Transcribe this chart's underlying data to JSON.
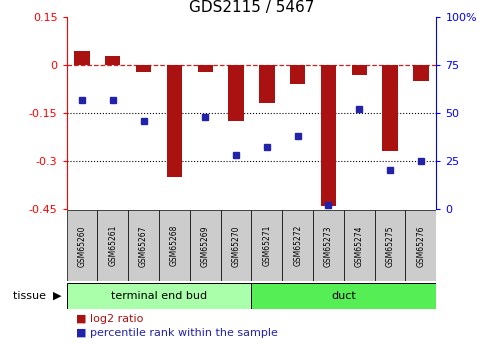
{
  "title": "GDS2115 / 5467",
  "samples": [
    "GSM65260",
    "GSM65261",
    "GSM65267",
    "GSM65268",
    "GSM65269",
    "GSM65270",
    "GSM65271",
    "GSM65272",
    "GSM65273",
    "GSM65274",
    "GSM65275",
    "GSM65276"
  ],
  "log2_ratio": [
    0.045,
    0.03,
    -0.02,
    -0.35,
    -0.02,
    -0.175,
    -0.12,
    -0.06,
    -0.44,
    -0.03,
    -0.27,
    -0.05
  ],
  "percentile_rank": [
    57,
    57,
    46,
    null,
    48,
    28,
    32,
    38,
    2,
    52,
    20,
    25
  ],
  "ylim_left": [
    -0.45,
    0.15
  ],
  "ylim_right": [
    0,
    100
  ],
  "yticks_left": [
    0.15,
    0,
    -0.15,
    -0.3,
    -0.45
  ],
  "yticks_right": [
    100,
    75,
    50,
    25,
    0
  ],
  "hlines": [
    -0.15,
    -0.3
  ],
  "bar_color": "#aa1111",
  "dot_color": "#2222aa",
  "dashed_line_color": "#cc2222",
  "tissue_groups": [
    {
      "label": "terminal end bud",
      "start": 0,
      "end": 6,
      "color": "#aaffaa"
    },
    {
      "label": "duct",
      "start": 6,
      "end": 12,
      "color": "#55ee55"
    }
  ],
  "tissue_label": "tissue",
  "legend_items": [
    {
      "label": "log2 ratio",
      "color": "#aa1111"
    },
    {
      "label": "percentile rank within the sample",
      "color": "#2222aa"
    }
  ],
  "bar_width": 0.5,
  "grid_color": "#000000",
  "background_color": "#ffffff",
  "plot_bg": "#ffffff",
  "sample_box_color": "#cccccc",
  "title_fontsize": 11,
  "tick_fontsize": 8,
  "legend_fontsize": 8
}
